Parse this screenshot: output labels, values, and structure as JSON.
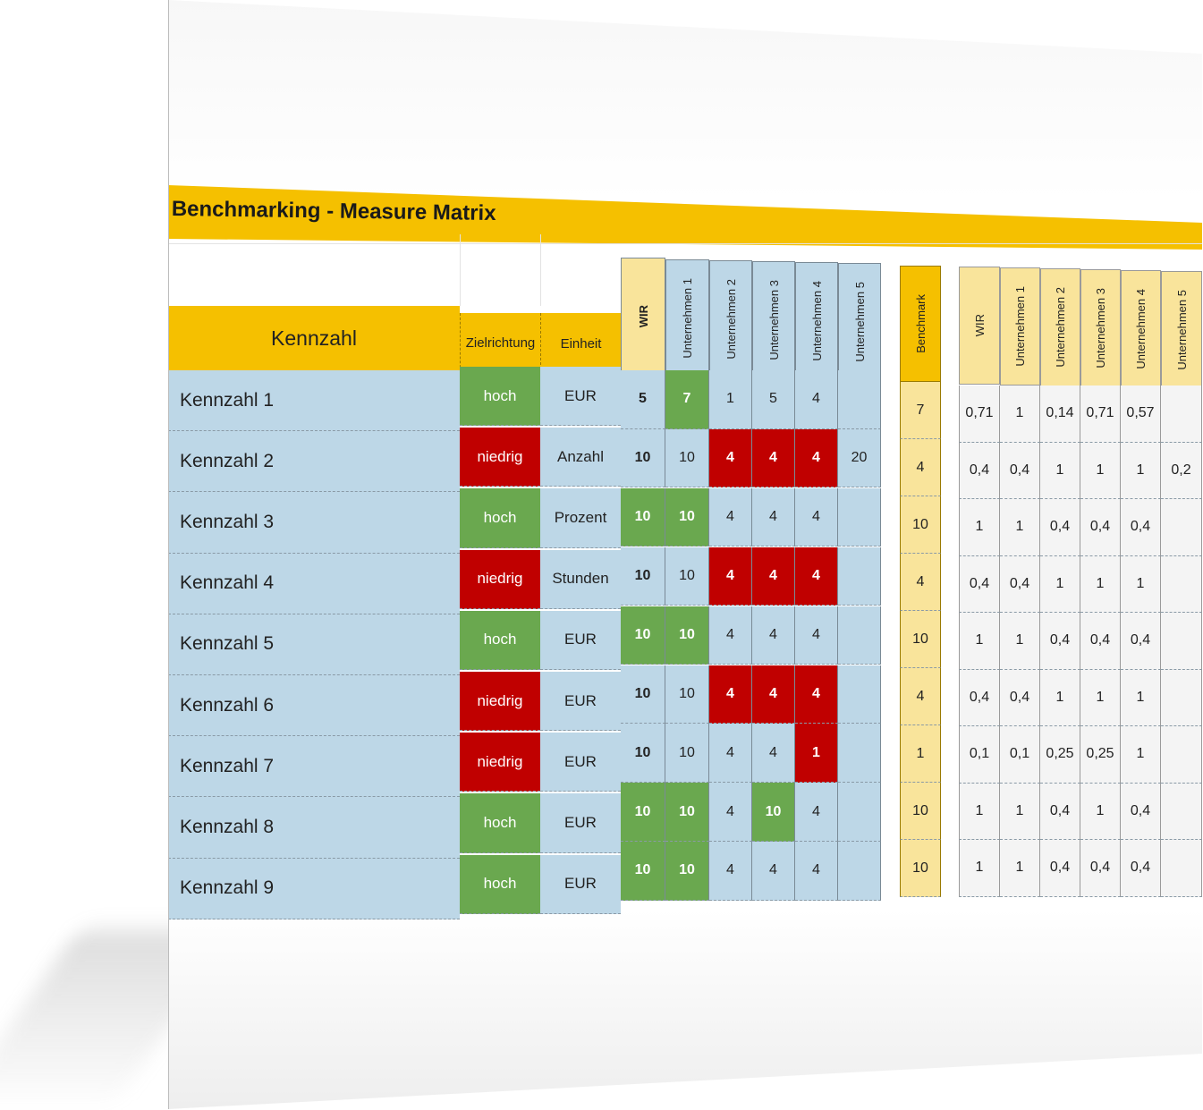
{
  "title": "Benchmarking - Measure Matrix",
  "headers": {
    "kennzahl": "Kennzahl",
    "zielrichtung": "Zielrichtung",
    "einheit": "Einheit",
    "wir": "WIR",
    "u1": "Unternehmen 1",
    "u2": "Unternehmen 2",
    "u3": "Unternehmen 3",
    "u4": "Unternehmen 4",
    "u5": "Unternehmen 5",
    "benchmark": "Benchmark",
    "r_wir": "WIR",
    "r_u1": "Unternehmen 1",
    "r_u2": "Unternehmen 2",
    "r_u3": "Unternehmen 3",
    "r_u4": "Unternehmen 4",
    "r_u5": "Unternehmen 5"
  },
  "rows": [
    {
      "name": "Kennzahl 1",
      "ziel": "hoch",
      "einheit": "EUR",
      "wir": "5",
      "u1": "7",
      "u2": "1",
      "u3": "5",
      "u4": "4",
      "u5": "",
      "bench": "7",
      "r": [
        "0,71",
        "1",
        "0,14",
        "0,71",
        "0,57",
        ""
      ],
      "wir_style": "blue",
      "u1_style": "green",
      "u2_style": "blue",
      "u3_style": "blue",
      "u4_style": "blue"
    },
    {
      "name": "Kennzahl 2",
      "ziel": "niedrig",
      "einheit": "Anzahl",
      "wir": "10",
      "u1": "10",
      "u2": "4",
      "u3": "4",
      "u4": "4",
      "u5": "20",
      "bench": "4",
      "r": [
        "0,4",
        "0,4",
        "1",
        "1",
        "1",
        "0,2"
      ],
      "wir_style": "blue",
      "u1_style": "blue",
      "u2_style": "red",
      "u3_style": "red",
      "u4_style": "red"
    },
    {
      "name": "Kennzahl 3",
      "ziel": "hoch",
      "einheit": "Prozent",
      "wir": "10",
      "u1": "10",
      "u2": "4",
      "u3": "4",
      "u4": "4",
      "u5": "",
      "bench": "10",
      "r": [
        "1",
        "1",
        "0,4",
        "0,4",
        "0,4",
        ""
      ],
      "wir_style": "green",
      "u1_style": "green",
      "u2_style": "blue",
      "u3_style": "blue",
      "u4_style": "blue"
    },
    {
      "name": "Kennzahl 4",
      "ziel": "niedrig",
      "einheit": "Stunden",
      "wir": "10",
      "u1": "10",
      "u2": "4",
      "u3": "4",
      "u4": "4",
      "u5": "",
      "bench": "4",
      "r": [
        "0,4",
        "0,4",
        "1",
        "1",
        "1",
        ""
      ],
      "wir_style": "blue",
      "u1_style": "blue",
      "u2_style": "red",
      "u3_style": "red",
      "u4_style": "red"
    },
    {
      "name": "Kennzahl 5",
      "ziel": "hoch",
      "einheit": "EUR",
      "wir": "10",
      "u1": "10",
      "u2": "4",
      "u3": "4",
      "u4": "4",
      "u5": "",
      "bench": "10",
      "r": [
        "1",
        "1",
        "0,4",
        "0,4",
        "0,4",
        ""
      ],
      "wir_style": "green",
      "u1_style": "green",
      "u2_style": "blue",
      "u3_style": "blue",
      "u4_style": "blue"
    },
    {
      "name": "Kennzahl 6",
      "ziel": "niedrig",
      "einheit": "EUR",
      "wir": "10",
      "u1": "10",
      "u2": "4",
      "u3": "4",
      "u4": "4",
      "u5": "",
      "bench": "4",
      "r": [
        "0,4",
        "0,4",
        "1",
        "1",
        "1",
        ""
      ],
      "wir_style": "blue",
      "u1_style": "blue",
      "u2_style": "red",
      "u3_style": "red",
      "u4_style": "red"
    },
    {
      "name": "Kennzahl 7",
      "ziel": "niedrig",
      "einheit": "EUR",
      "wir": "10",
      "u1": "10",
      "u2": "4",
      "u3": "4",
      "u4": "1",
      "u5": "",
      "bench": "1",
      "r": [
        "0,1",
        "0,1",
        "0,25",
        "0,25",
        "1",
        ""
      ],
      "wir_style": "blue",
      "u1_style": "blue",
      "u2_style": "blue",
      "u3_style": "blue",
      "u4_style": "red"
    },
    {
      "name": "Kennzahl 8",
      "ziel": "hoch",
      "einheit": "EUR",
      "wir": "10",
      "u1": "10",
      "u2": "4",
      "u3": "10",
      "u4": "4",
      "u5": "",
      "bench": "10",
      "r": [
        "1",
        "1",
        "0,4",
        "1",
        "0,4",
        ""
      ],
      "wir_style": "green",
      "u1_style": "green",
      "u2_style": "blue",
      "u3_style": "green",
      "u4_style": "blue"
    },
    {
      "name": "Kennzahl 9",
      "ziel": "hoch",
      "einheit": "EUR",
      "wir": "10",
      "u1": "10",
      "u2": "4",
      "u3": "4",
      "u4": "4",
      "u5": "",
      "bench": "10",
      "r": [
        "1",
        "1",
        "0,4",
        "0,4",
        "0,4",
        ""
      ],
      "wir_style": "green",
      "u1_style": "green",
      "u2_style": "blue",
      "u3_style": "blue",
      "u4_style": "blue"
    }
  ],
  "colors": {
    "gold": "#f5c000",
    "green": "#6aa84f",
    "red": "#c00000",
    "blue": "#bdd7e7",
    "yellow": "#f9e49b"
  }
}
